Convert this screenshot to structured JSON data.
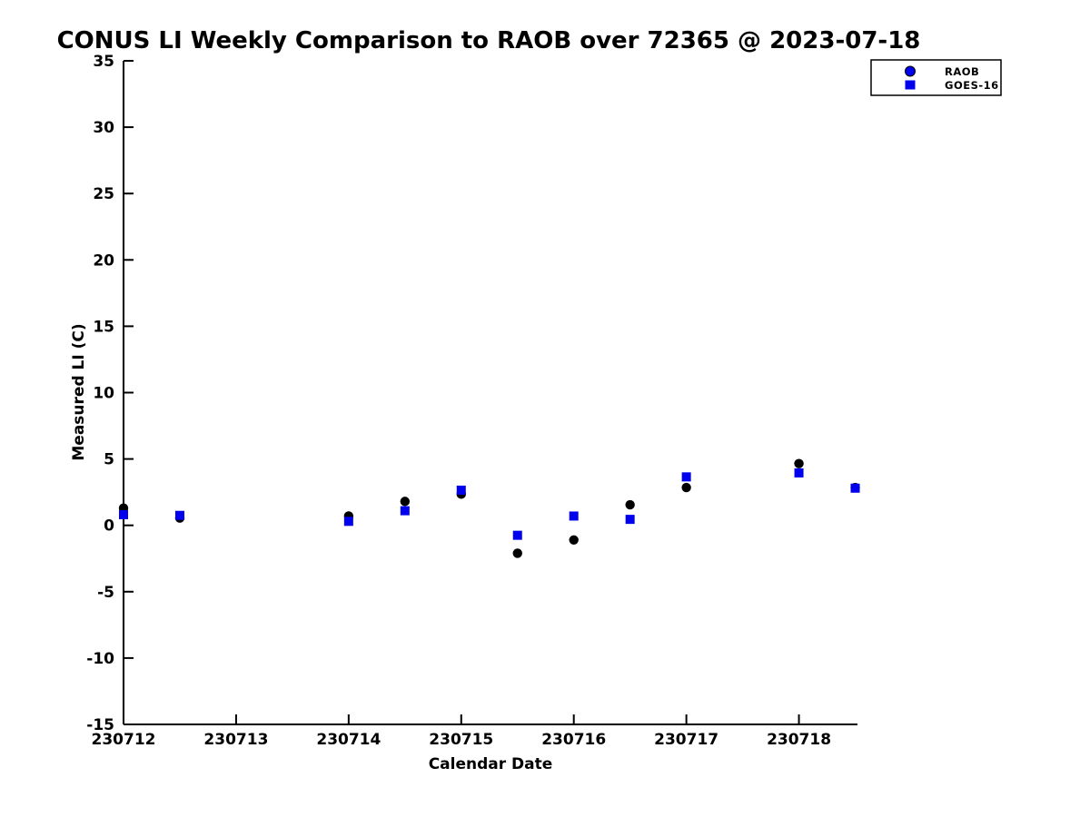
{
  "title": "CONUS LI Weekly Comparison to RAOB over 72365 @ 2023-07-18",
  "colors": {
    "marker_blue": "#0000ee",
    "marker_black": "#000000",
    "axis_black": "#000000",
    "background": "#ffffff"
  },
  "chart_data": {
    "type": "scatter",
    "title": "CONUS LI Weekly Comparison to RAOB over 72365 @ 2023-07-18",
    "xlabel": "Calendar Date",
    "ylabel": "Measured LI (C)",
    "xlim": [
      230712,
      230718.52
    ],
    "ylim": [
      -15,
      35
    ],
    "x_ticks": [
      230712,
      230713,
      230714,
      230715,
      230716,
      230717,
      230718
    ],
    "y_ticks": [
      -15,
      -10,
      -5,
      0,
      5,
      10,
      15,
      20,
      25,
      30,
      35
    ],
    "grid": false,
    "legend_position": "top-right",
    "x": [
      230712,
      230712.5,
      230714,
      230714.5,
      230715,
      230715.5,
      230716,
      230716.5,
      230717,
      230718,
      230718.5
    ],
    "series": [
      {
        "name": "RAOB",
        "marker": "circle",
        "plot_color": "#000000",
        "legend_color": "#0000ee",
        "values": [
          1.3,
          0.55,
          0.7,
          1.8,
          2.35,
          -2.1,
          -1.1,
          1.55,
          2.85,
          4.65,
          2.85
        ]
      },
      {
        "name": "GOES-16",
        "marker": "square",
        "plot_color": "#0000ee",
        "legend_color": "#0000ee",
        "values": [
          0.8,
          0.75,
          0.3,
          1.1,
          2.65,
          -0.75,
          0.7,
          0.45,
          3.65,
          3.95,
          2.8
        ]
      }
    ]
  }
}
